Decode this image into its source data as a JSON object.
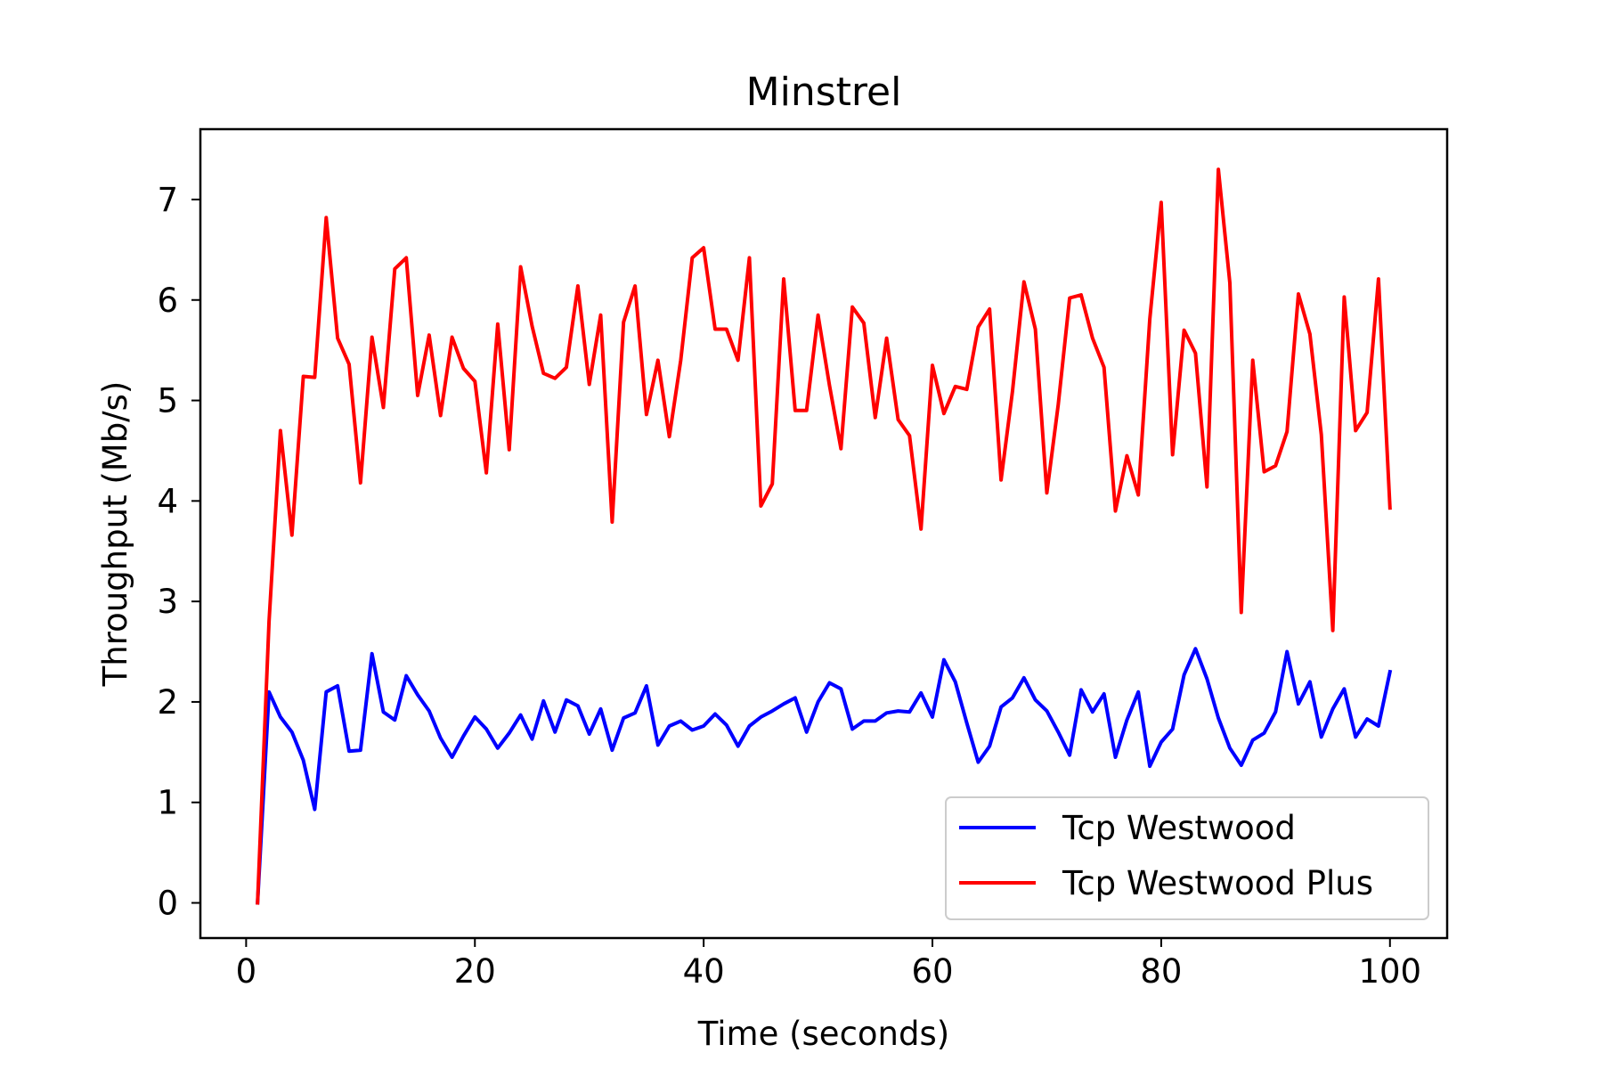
{
  "chart_data": {
    "type": "line",
    "title": "Minstrel",
    "xlabel": "Time (seconds)",
    "ylabel": "Throughput (Mb/s)",
    "xlim": [
      -4,
      105
    ],
    "ylim": [
      -0.35,
      7.7
    ],
    "xticks": [
      0,
      20,
      40,
      60,
      80,
      100
    ],
    "yticks": [
      0,
      1,
      2,
      3,
      4,
      5,
      6,
      7
    ],
    "xtick_labels": [
      "0",
      "20",
      "40",
      "60",
      "80",
      "100"
    ],
    "ytick_labels": [
      "0",
      "1",
      "2",
      "3",
      "4",
      "5",
      "6",
      "7"
    ],
    "grid": false,
    "legend_position": "lower-right",
    "x": [
      1,
      2,
      3,
      4,
      5,
      6,
      7,
      8,
      9,
      10,
      11,
      12,
      13,
      14,
      15,
      16,
      17,
      18,
      19,
      20,
      21,
      22,
      23,
      24,
      25,
      26,
      27,
      28,
      29,
      30,
      31,
      32,
      33,
      34,
      35,
      36,
      37,
      38,
      39,
      40,
      41,
      42,
      43,
      44,
      45,
      46,
      47,
      48,
      49,
      50,
      51,
      52,
      53,
      54,
      55,
      56,
      57,
      58,
      59,
      60,
      61,
      62,
      63,
      64,
      65,
      66,
      67,
      68,
      69,
      70,
      71,
      72,
      73,
      74,
      75,
      76,
      77,
      78,
      79,
      80,
      81,
      82,
      83,
      84,
      85,
      86,
      87,
      88,
      89,
      90,
      91,
      92,
      93,
      94,
      95,
      96,
      97,
      98,
      99,
      100
    ],
    "series": [
      {
        "name": "Tcp Westwood",
        "color": "#0000ff",
        "values": [
          0.0,
          2.1,
          1.85,
          1.7,
          1.42,
          0.93,
          2.1,
          2.16,
          1.51,
          1.52,
          2.48,
          1.9,
          1.82,
          2.26,
          2.07,
          1.91,
          1.64,
          1.45,
          1.66,
          1.85,
          1.73,
          1.54,
          1.69,
          1.87,
          1.63,
          2.01,
          1.7,
          2.02,
          1.96,
          1.68,
          1.93,
          1.52,
          1.84,
          1.89,
          2.16,
          1.57,
          1.76,
          1.81,
          1.72,
          1.76,
          1.88,
          1.77,
          1.56,
          1.76,
          1.85,
          1.91,
          1.98,
          2.04,
          1.7,
          2.0,
          2.19,
          2.13,
          1.73,
          1.81,
          1.81,
          1.89,
          1.91,
          1.9,
          2.09,
          1.85,
          2.42,
          2.2,
          1.79,
          1.4,
          1.56,
          1.95,
          2.04,
          2.24,
          2.02,
          1.91,
          1.7,
          1.47,
          2.12,
          1.9,
          2.08,
          1.45,
          1.82,
          2.1,
          1.36,
          1.6,
          1.73,
          2.27,
          2.53,
          2.23,
          1.84,
          1.54,
          1.37,
          1.62,
          1.69,
          1.9,
          2.5,
          1.98,
          2.2,
          1.65,
          1.93,
          2.13,
          1.65,
          1.83,
          1.76,
          2.3
        ]
      },
      {
        "name": "Tcp Westwood Plus",
        "color": "#ff0000",
        "values": [
          0.0,
          2.8,
          4.7,
          3.66,
          5.24,
          5.23,
          6.82,
          5.62,
          5.36,
          4.18,
          5.63,
          4.93,
          6.31,
          6.42,
          5.05,
          5.65,
          4.85,
          5.63,
          5.32,
          5.19,
          4.28,
          5.76,
          4.51,
          6.33,
          5.74,
          5.27,
          5.22,
          5.33,
          6.14,
          5.16,
          5.85,
          3.79,
          5.78,
          6.14,
          4.86,
          5.4,
          4.64,
          5.4,
          6.42,
          6.52,
          5.71,
          5.71,
          5.4,
          6.42,
          3.95,
          4.17,
          6.21,
          4.9,
          4.9,
          5.85,
          5.15,
          4.52,
          5.93,
          5.77,
          4.83,
          5.62,
          4.81,
          4.65,
          3.72,
          5.35,
          4.87,
          5.14,
          5.11,
          5.73,
          5.91,
          4.21,
          5.09,
          6.18,
          5.71,
          4.08,
          4.96,
          6.02,
          6.05,
          5.62,
          5.33,
          3.9,
          4.45,
          4.06,
          5.81,
          6.97,
          4.46,
          5.7,
          5.47,
          4.14,
          7.3,
          6.17,
          2.89,
          5.4,
          4.29,
          4.35,
          4.69,
          6.06,
          5.66,
          4.66,
          2.71,
          6.03,
          4.7,
          4.88,
          6.21,
          3.93
        ]
      }
    ]
  }
}
